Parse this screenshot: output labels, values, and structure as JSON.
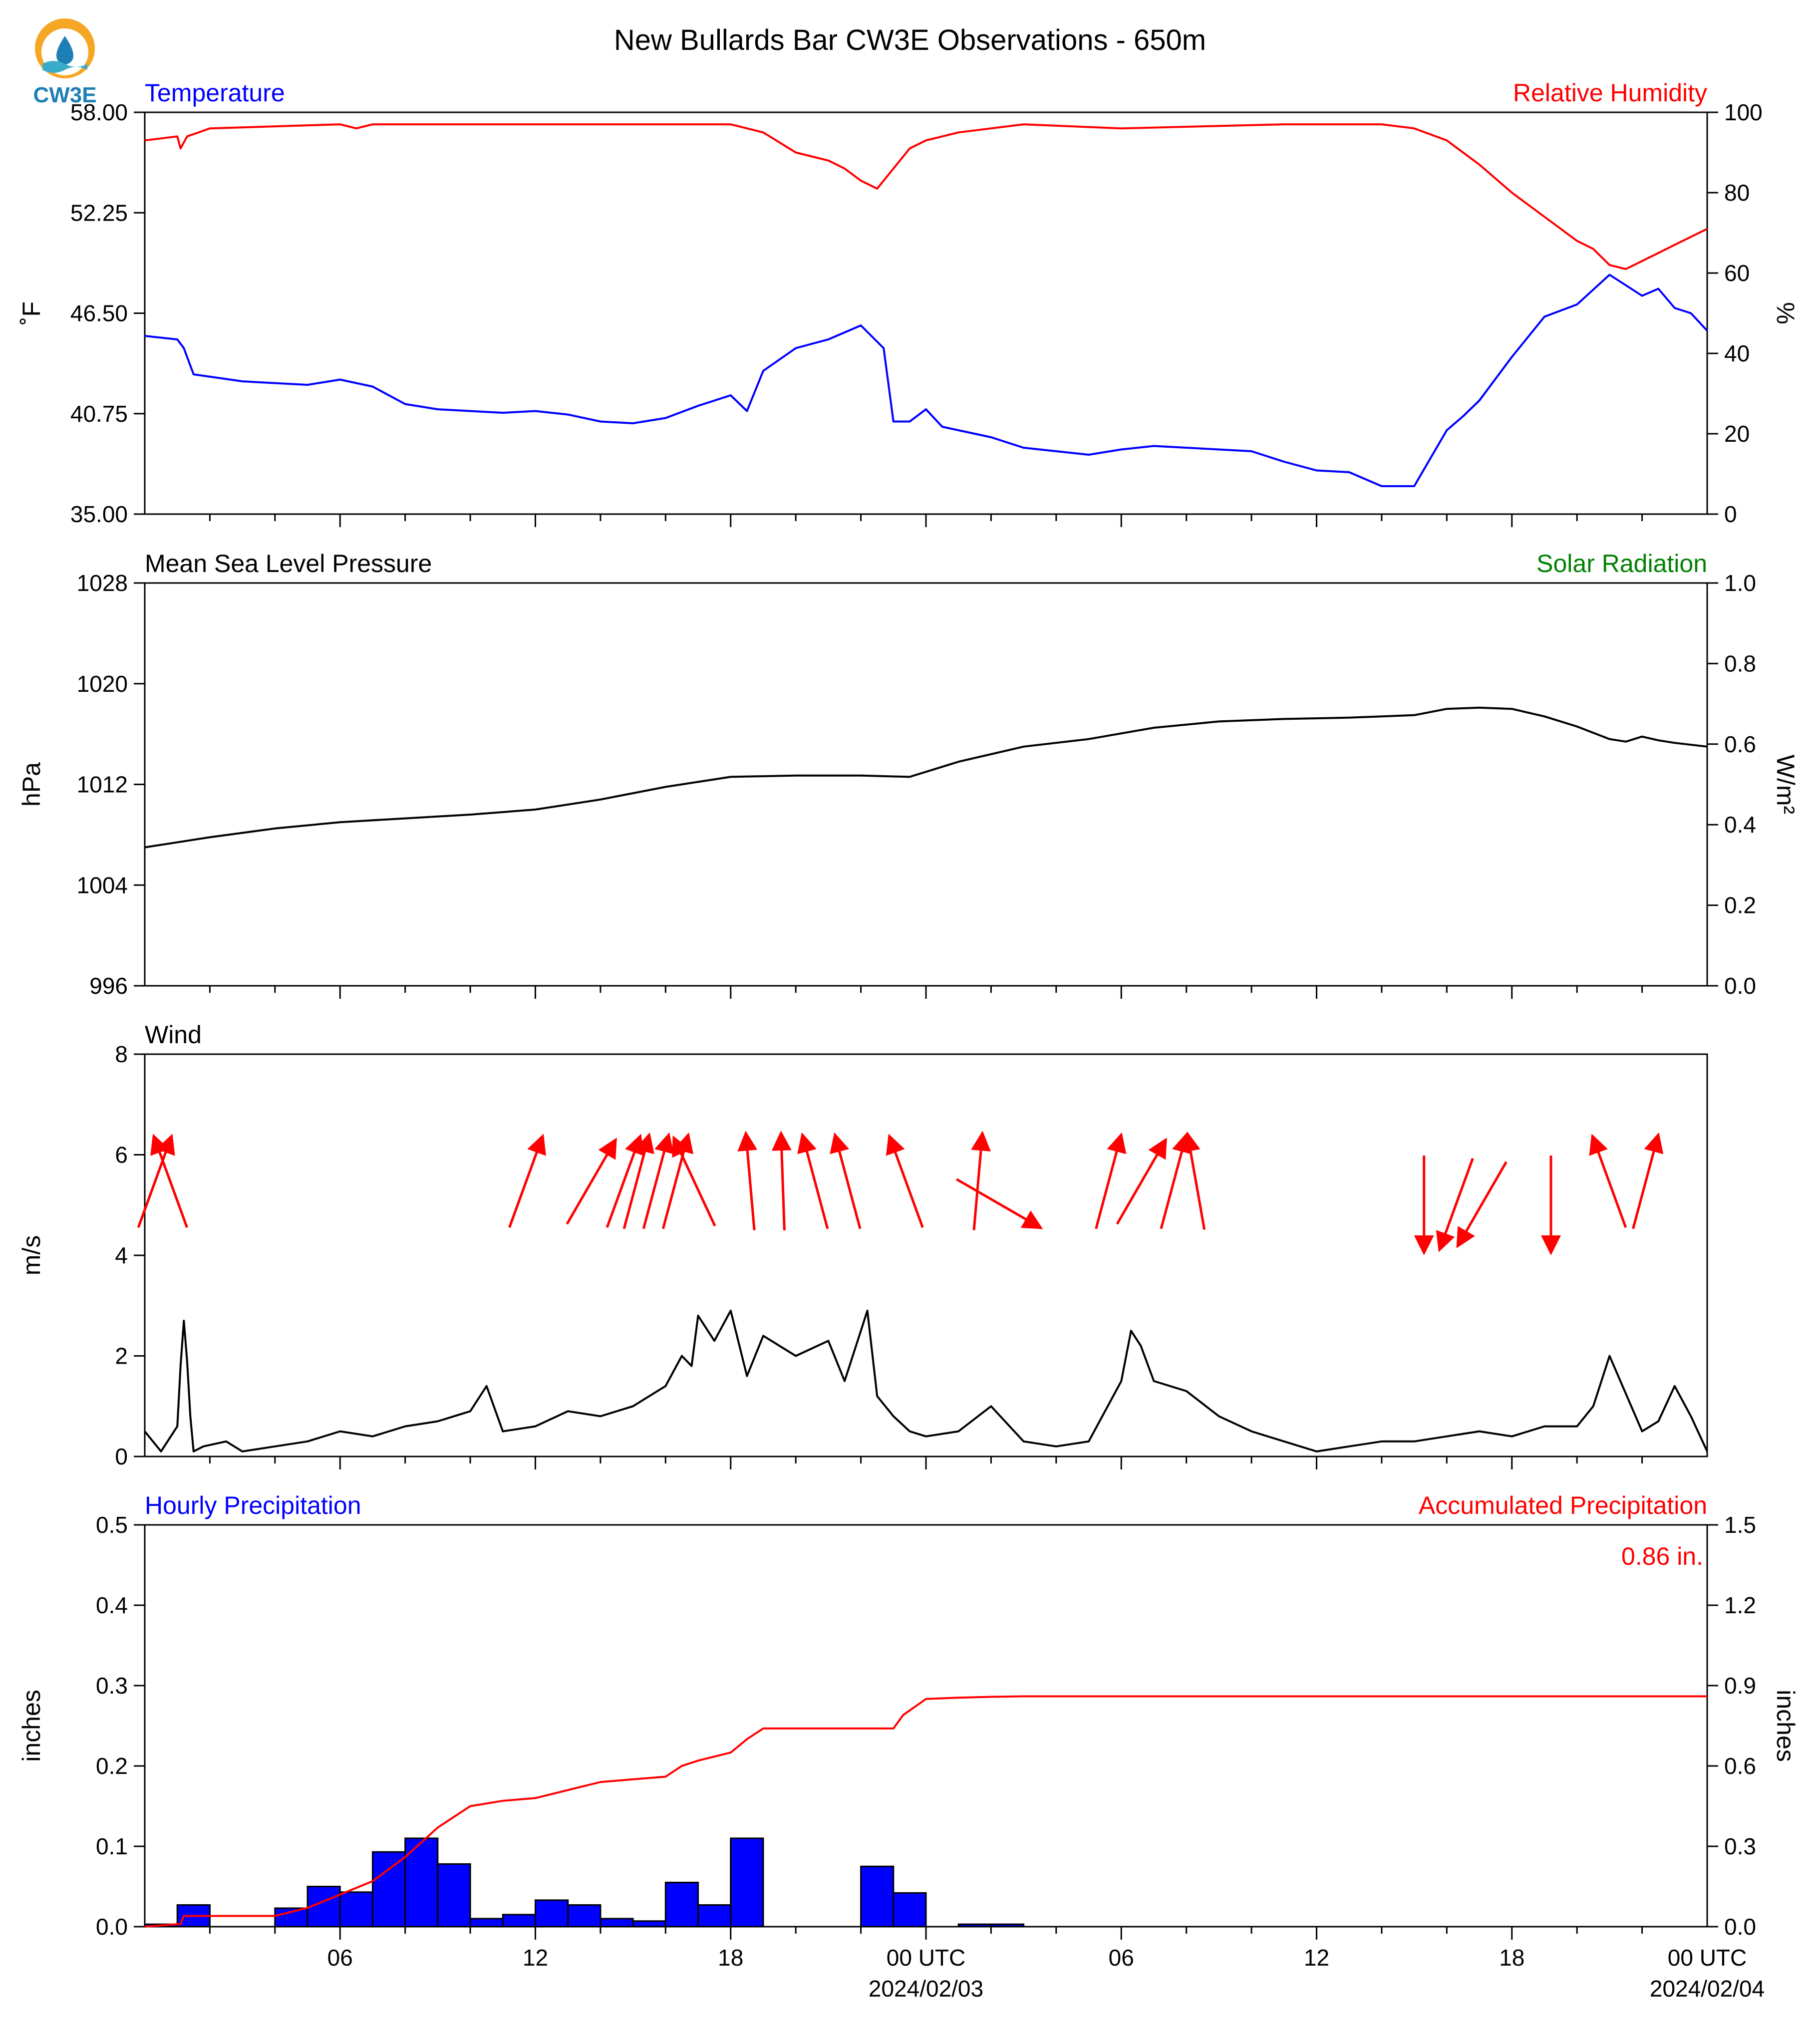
{
  "title": "New Bullards Bar CW3E Observations - 650m",
  "logo": {
    "text": "CW3E",
    "colors": {
      "orange": "#F5A623",
      "blue": "#1D7FB5",
      "teal": "#3AAAC9"
    }
  },
  "colors": {
    "blue": "#0000ff",
    "red": "#ff0000",
    "green": "#008000",
    "black": "#000000",
    "bar_fill": "#0000ff",
    "bar_edge": "#000000"
  },
  "x_axis": {
    "start": "2024-02-02T01:00Z",
    "end": "2024-02-04T01:00Z",
    "tick_labels": [
      "06",
      "12",
      "18",
      "00 UTC",
      "06",
      "12",
      "18",
      "00 UTC"
    ],
    "tick_hours": [
      6,
      12,
      18,
      24,
      30,
      36,
      42,
      48
    ],
    "date_labels": [
      "2024/02/03",
      "2024/02/04"
    ]
  },
  "chart_data": [
    {
      "type": "line",
      "name": "temperature-humidity",
      "left_label": "Temperature",
      "right_label": "Relative Humidity",
      "ylabel_left": "˚F",
      "ylabel_right": "%",
      "ylim_left": [
        35.0,
        58.0
      ],
      "ylim_right": [
        0,
        100
      ],
      "yticks_left": [
        "35.00",
        "40.75",
        "46.50",
        "52.25",
        "58.00"
      ],
      "yticks_right": [
        "0",
        "20",
        "40",
        "60",
        "80",
        "100"
      ],
      "series": [
        {
          "name": "Temperature",
          "axis": "left",
          "color": "#0000ff",
          "x_hours": [
            0,
            1,
            1.2,
            1.5,
            3,
            5,
            6,
            7,
            8,
            9,
            10,
            11,
            12,
            13,
            14,
            15,
            16,
            17,
            18,
            18.5,
            19,
            20,
            21,
            22,
            22.7,
            23,
            23.5,
            24,
            24.5,
            25,
            26,
            27,
            28,
            29,
            30,
            31,
            32,
            33,
            34,
            35,
            36,
            37,
            38,
            39,
            40,
            40.5,
            41,
            42,
            43,
            44,
            45,
            46,
            46.5,
            47,
            47.5,
            48
          ],
          "values": [
            45.2,
            45.0,
            44.5,
            43.0,
            42.6,
            42.4,
            42.7,
            42.3,
            41.3,
            41.0,
            40.9,
            40.8,
            40.9,
            40.7,
            40.3,
            40.2,
            40.5,
            41.2,
            41.8,
            40.9,
            43.2,
            44.5,
            45.0,
            45.8,
            44.5,
            40.3,
            40.3,
            41.0,
            40.0,
            39.8,
            39.4,
            38.8,
            38.6,
            38.4,
            38.7,
            38.9,
            38.8,
            38.7,
            38.6,
            38.0,
            37.5,
            37.4,
            36.6,
            36.6,
            39.8,
            40.6,
            41.5,
            44.0,
            46.3,
            47.0,
            48.7,
            47.5,
            47.9,
            46.8,
            46.5,
            45.5
          ]
        },
        {
          "name": "Relative Humidity",
          "axis": "right",
          "color": "#ff0000",
          "x_hours": [
            0,
            1,
            1.1,
            1.3,
            2,
            6,
            6.5,
            7,
            10,
            15,
            18,
            18.5,
            19,
            20,
            21,
            21.5,
            22,
            22.5,
            23,
            23.5,
            24,
            25,
            26,
            27,
            30,
            35,
            38,
            39,
            40,
            40.5,
            41,
            42,
            43,
            44,
            44.5,
            45,
            45.5,
            46,
            46.5,
            47,
            48
          ],
          "values": [
            93,
            94,
            91,
            94,
            96,
            97,
            96,
            97,
            97,
            97,
            97,
            96,
            95,
            90,
            88,
            86,
            83,
            81,
            86,
            91,
            93,
            95,
            96,
            97,
            96,
            97,
            97,
            96,
            93,
            90,
            87,
            80,
            74,
            68,
            66,
            62,
            61,
            63,
            65,
            67,
            71
          ]
        }
      ]
    },
    {
      "type": "line",
      "name": "pressure-solar",
      "left_label": "Mean Sea Level Pressure",
      "right_label": "Solar Radiation",
      "ylabel_left": "hPa",
      "ylabel_right": "W/m²",
      "ylim_left": [
        996,
        1028
      ],
      "ylim_right": [
        0.0,
        1.0
      ],
      "yticks_left": [
        "996",
        "1004",
        "1012",
        "1020",
        "1028"
      ],
      "yticks_right": [
        "0.0",
        "0.2",
        "0.4",
        "0.6",
        "0.8",
        "1.0"
      ],
      "series": [
        {
          "name": "Mean Sea Level Pressure",
          "axis": "left",
          "color": "#000000",
          "x_hours": [
            0,
            2,
            4,
            6,
            8,
            10,
            12,
            14,
            16,
            18,
            20,
            22,
            23.5,
            25,
            27,
            29,
            31,
            33,
            35,
            37,
            39,
            40,
            41,
            42,
            43,
            44,
            45,
            45.5,
            46,
            46.5,
            47,
            48
          ],
          "values": [
            1007.0,
            1007.8,
            1008.5,
            1009.0,
            1009.3,
            1009.6,
            1010.0,
            1010.8,
            1011.8,
            1012.6,
            1012.7,
            1012.7,
            1012.6,
            1013.8,
            1015.0,
            1015.6,
            1016.5,
            1017.0,
            1017.2,
            1017.3,
            1017.5,
            1018.0,
            1018.1,
            1018.0,
            1017.4,
            1016.6,
            1015.6,
            1015.4,
            1015.8,
            1015.5,
            1015.3,
            1015.0
          ]
        }
      ]
    },
    {
      "type": "line",
      "name": "wind",
      "left_label": "Wind",
      "ylabel_left": "m/s",
      "ylim_left": [
        0,
        8
      ],
      "yticks_left": [
        "0",
        "2",
        "4",
        "6",
        "8"
      ],
      "series": [
        {
          "name": "Wind",
          "axis": "left",
          "color": "#000000",
          "x_hours": [
            0,
            0.5,
            1,
            1.1,
            1.2,
            1.3,
            1.4,
            1.5,
            1.8,
            2.5,
            3,
            4,
            5,
            6,
            7,
            8,
            9,
            10,
            10.5,
            11,
            12,
            13,
            14,
            15,
            16,
            16.5,
            16.8,
            17,
            17.5,
            18,
            18.5,
            19,
            20,
            21,
            21.5,
            22,
            22.2,
            22.5,
            23,
            23.5,
            24,
            25,
            26,
            27,
            28,
            29,
            30,
            30.3,
            30.6,
            31,
            32,
            33,
            34,
            35,
            36,
            37,
            38,
            39,
            40,
            41,
            42,
            43,
            44,
            44.5,
            45,
            46,
            46.5,
            47,
            47.5,
            48
          ],
          "values": [
            0.5,
            0.1,
            0.6,
            1.8,
            2.7,
            1.9,
            0.8,
            0.1,
            0.2,
            0.3,
            0.1,
            0.2,
            0.3,
            0.5,
            0.4,
            0.6,
            0.7,
            0.9,
            1.4,
            0.5,
            0.6,
            0.9,
            0.8,
            1.0,
            1.4,
            2.0,
            1.8,
            2.8,
            2.3,
            2.9,
            1.6,
            2.4,
            2.0,
            2.3,
            1.5,
            2.5,
            2.9,
            1.2,
            0.8,
            0.5,
            0.4,
            0.5,
            1.0,
            0.3,
            0.2,
            0.3,
            1.5,
            2.5,
            2.2,
            1.5,
            1.3,
            0.8,
            0.5,
            0.3,
            0.1,
            0.2,
            0.3,
            0.3,
            0.4,
            0.5,
            0.4,
            0.6,
            0.6,
            1.0,
            2.0,
            0.5,
            0.7,
            1.4,
            0.8,
            0.1
          ]
        }
      ],
      "arrows": [
        {
          "hour": 0.3,
          "dir": 200
        },
        {
          "hour": 0.8,
          "dir": 160
        },
        {
          "hour": 11.7,
          "dir": 200
        },
        {
          "hour": 13.7,
          "dir": 210
        },
        {
          "hour": 14.7,
          "dir": 200
        },
        {
          "hour": 15.1,
          "dir": 195
        },
        {
          "hour": 15.7,
          "dir": 195
        },
        {
          "hour": 16.3,
          "dir": 195
        },
        {
          "hour": 16.9,
          "dir": 155
        },
        {
          "hour": 18.6,
          "dir": 175
        },
        {
          "hour": 19.6,
          "dir": 178
        },
        {
          "hour": 20.6,
          "dir": 165
        },
        {
          "hour": 21.6,
          "dir": 165
        },
        {
          "hour": 23.4,
          "dir": 160
        },
        {
          "hour": 25.6,
          "dir": 185
        },
        {
          "hour": 26.2,
          "dir": 300
        },
        {
          "hour": 29.6,
          "dir": 195
        },
        {
          "hour": 30.6,
          "dir": 210
        },
        {
          "hour": 31.6,
          "dir": 195
        },
        {
          "hour": 32.3,
          "dir": 170
        },
        {
          "hour": 39.3,
          "dir": 0
        },
        {
          "hour": 40.3,
          "dir": 20
        },
        {
          "hour": 41.1,
          "dir": 30
        },
        {
          "hour": 43.2,
          "dir": 0
        },
        {
          "hour": 45.0,
          "dir": 160
        },
        {
          "hour": 46.1,
          "dir": 195
        }
      ]
    },
    {
      "type": "bar",
      "name": "precipitation",
      "left_label": "Hourly Precipitation",
      "right_label": "Accumulated Precipitation",
      "ylabel_left": "inches",
      "ylabel_right": "inches",
      "ylim_left": [
        0.0,
        0.5
      ],
      "ylim_right": [
        0.0,
        1.5
      ],
      "yticks_left": [
        "0.0",
        "0.1",
        "0.2",
        "0.3",
        "0.4",
        "0.5"
      ],
      "yticks_right": [
        "0.0",
        "0.3",
        "0.6",
        "0.9",
        "1.2",
        "1.5"
      ],
      "total_label": "0.86 in.",
      "hourly": {
        "bin_start_hours": [
          0,
          1,
          2,
          3,
          4,
          5,
          6,
          7,
          8,
          9,
          10,
          11,
          12,
          13,
          14,
          15,
          16,
          17,
          18,
          19,
          20,
          21,
          22,
          23,
          24,
          25,
          26,
          27,
          28,
          29
        ],
        "values": [
          0.003,
          0.027,
          0.0,
          0.0,
          0.023,
          0.05,
          0.043,
          0.093,
          0.11,
          0.078,
          0.01,
          0.015,
          0.033,
          0.027,
          0.01,
          0.007,
          0.055,
          0.027,
          0.11,
          0.0,
          0.0,
          0.0,
          0.075,
          0.042,
          0.0,
          0.003,
          0.003,
          0.0,
          0.0,
          0.0
        ]
      },
      "accumulated": {
        "x_hours": [
          0,
          1.1,
          1.2,
          4,
          5,
          6,
          7,
          8,
          9,
          10,
          11,
          12,
          13,
          14,
          15,
          16,
          16.5,
          17,
          18,
          18.5,
          19,
          20,
          21,
          22,
          23,
          23.3,
          24,
          25,
          26,
          27,
          28,
          29,
          30,
          48
        ],
        "values": [
          0.0,
          0.01,
          0.04,
          0.04,
          0.07,
          0.12,
          0.17,
          0.26,
          0.37,
          0.45,
          0.47,
          0.48,
          0.51,
          0.54,
          0.55,
          0.56,
          0.6,
          0.62,
          0.65,
          0.7,
          0.74,
          0.74,
          0.74,
          0.74,
          0.74,
          0.79,
          0.85,
          0.855,
          0.858,
          0.86,
          0.86,
          0.86,
          0.86,
          0.86
        ]
      }
    }
  ]
}
